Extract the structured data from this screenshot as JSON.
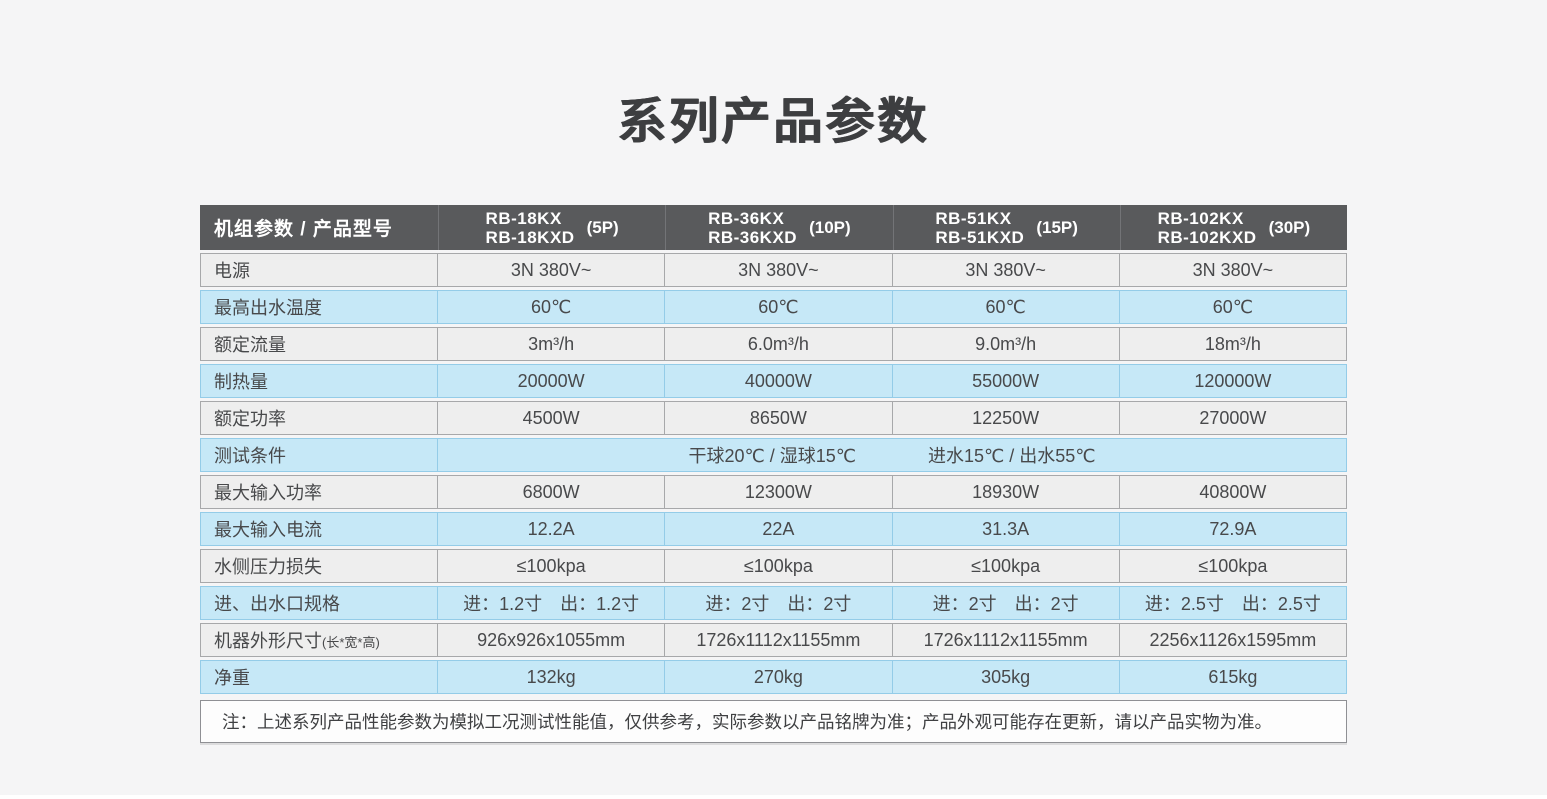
{
  "page": {
    "title": "系列产品参数",
    "note": "注：上述系列产品性能参数为模拟工况测试性能值，仅供参考，实际参数以产品铭牌为准；产品外观可能存在更新，请以产品实物为准。"
  },
  "colors": {
    "page_bg": "#f5f5f6",
    "header_bg": "#595a5c",
    "header_text": "#ffffff",
    "row_gray_bg": "#eeeeee",
    "row_gray_border": "#a7a8aa",
    "row_blue_bg": "#c6e8f7",
    "row_blue_border": "#94cce8",
    "text": "#48494b",
    "title_text": "#3d3e40"
  },
  "table": {
    "corner_label": "机组参数 / 产品型号",
    "models": [
      {
        "line1": "RB-18KX",
        "line2": "RB-18KXD",
        "hp": "(5P)"
      },
      {
        "line1": "RB-36KX",
        "line2": "RB-36KXD",
        "hp": "(10P)"
      },
      {
        "line1": "RB-51KX",
        "line2": "RB-51KXD",
        "hp": "(15P)"
      },
      {
        "line1": "RB-102KX",
        "line2": "RB-102KXD",
        "hp": "(30P)"
      }
    ],
    "rows": [
      {
        "label": "电源",
        "values": [
          "3N 380V~",
          "3N 380V~",
          "3N 380V~",
          "3N 380V~"
        ]
      },
      {
        "label": "最高出水温度",
        "values": [
          "60℃",
          "60℃",
          "60℃",
          "60℃"
        ]
      },
      {
        "label": "额定流量",
        "values": [
          "3m³/h",
          "6.0m³/h",
          "9.0m³/h",
          "18m³/h"
        ]
      },
      {
        "label": "制热量",
        "values": [
          "20000W",
          "40000W",
          "55000W",
          "120000W"
        ]
      },
      {
        "label": "额定功率",
        "values": [
          "4500W",
          "8650W",
          "12250W",
          "27000W"
        ]
      },
      {
        "label": "测试条件",
        "merged_left": "干球20℃ / 湿球15℃",
        "merged_right": "进水15℃ / 出水55℃"
      },
      {
        "label": "最大输入功率",
        "values": [
          "6800W",
          "12300W",
          "18930W",
          "40800W"
        ]
      },
      {
        "label": "最大输入电流",
        "values": [
          "12.2A",
          "22A",
          "31.3A",
          "72.9A"
        ]
      },
      {
        "label": "水侧压力损失",
        "values": [
          "≤100kpa",
          "≤100kpa",
          "≤100kpa",
          "≤100kpa"
        ]
      },
      {
        "label": "进、出水口规格",
        "values": [
          "进：1.2寸　出：1.2寸",
          "进：2寸　出：2寸",
          "进：2寸　出：2寸",
          "进：2.5寸　出：2.5寸"
        ]
      },
      {
        "label": "机器外形尺寸",
        "label_suffix": "(长*宽*高)",
        "values": [
          "926x926x1055mm",
          "1726x1112x1155mm",
          "1726x1112x1155mm",
          "2256x1126x1595mm"
        ]
      },
      {
        "label": "净重",
        "values": [
          "132kg",
          "270kg",
          "305kg",
          "615kg"
        ]
      }
    ]
  }
}
